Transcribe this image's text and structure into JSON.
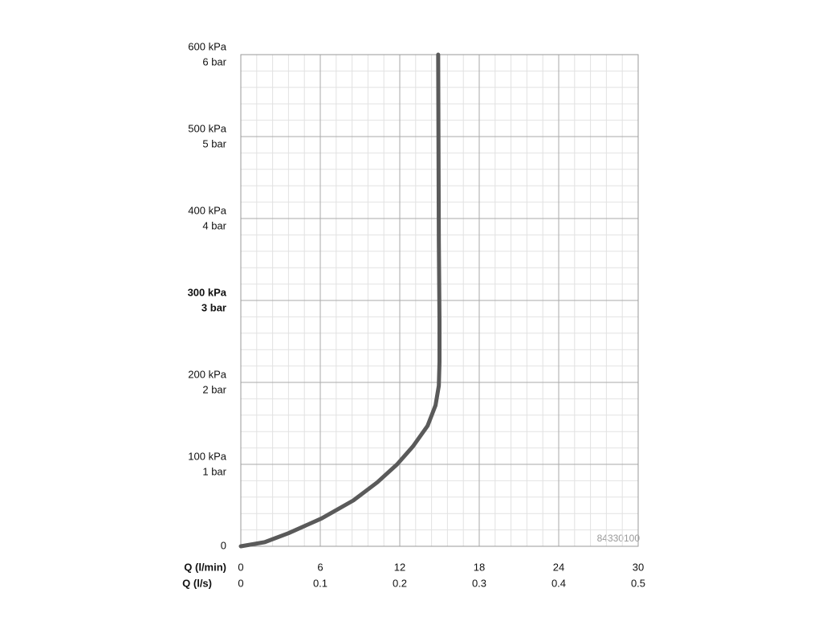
{
  "chart_data": {
    "type": "line",
    "x_label": "Q (l/min)",
    "x2_label": "Q (l/s)",
    "watermark": "84330100",
    "xlim": [
      0,
      30
    ],
    "xticks": [
      0,
      6,
      12,
      18,
      24,
      30
    ],
    "x2ticks": [
      0,
      {
        "value": 6,
        "label": "0.1"
      },
      {
        "value": 12,
        "label": "0.2"
      },
      {
        "value": 18,
        "label": "0.3"
      },
      {
        "value": 24,
        "label": "0.4"
      },
      {
        "value": 30,
        "label": "0.5"
      }
    ],
    "ylim": [
      0,
      600
    ],
    "yticks": [
      0,
      {
        "value": 100,
        "label": "100 kPa"
      },
      {
        "value": 200,
        "label": "200 kPa"
      },
      {
        "value": 300,
        "label": "300 kPa"
      },
      {
        "value": 400,
        "label": "400 kPa"
      },
      {
        "value": 500,
        "label": "500 kPa"
      },
      {
        "value": 600,
        "label": "600 kPa"
      }
    ],
    "y2ticks": [
      {
        "value": 100,
        "label": "1 bar"
      },
      {
        "value": 200,
        "label": "2 bar"
      },
      {
        "value": 300,
        "label": "3 bar"
      },
      {
        "value": 400,
        "label": "4 bar"
      },
      {
        "value": 500,
        "label": "5 bar"
      },
      {
        "value": 600,
        "label": "6 bar"
      }
    ],
    "highlight_ytick": 300,
    "grid": true,
    "minor_divisions": 5,
    "series": [
      {
        "color": "#5a5a5a",
        "x": [
          0,
          1.8,
          3.6,
          6.1,
          8.5,
          10.3,
          11.8,
          13.0,
          14.1,
          14.7,
          14.95,
          15.0,
          15.0,
          14.95,
          14.9
        ],
        "values": [
          0,
          5,
          16,
          34,
          56,
          78,
          100,
          122,
          147,
          172,
          196,
          225,
          275,
          372,
          600
        ]
      }
    ]
  }
}
